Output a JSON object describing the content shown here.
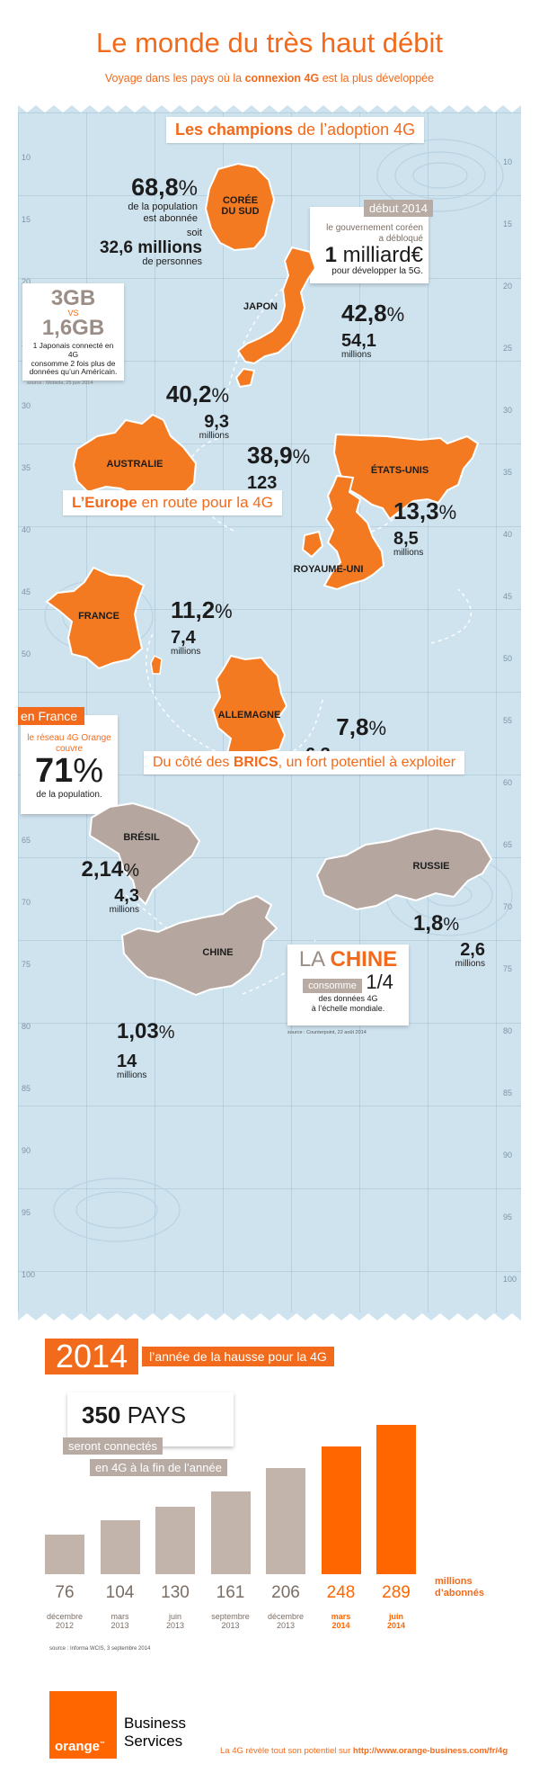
{
  "header": {
    "title": "Le monde du très haut débit",
    "subtitle_before": "Voyage dans les pays où la ",
    "subtitle_bold": "connexion 4G",
    "subtitle_after": " est la plus développée"
  },
  "champions": {
    "banner_bold": "Les champions",
    "banner_rest": " de l’adoption 4G",
    "coree": {
      "label_line1": "CORÉE",
      "label_line2": "DU SUD",
      "pct": "68,8",
      "pct_sign": "%",
      "pct_text_l1": "de la population",
      "pct_text_l2": "est abonnée",
      "soit": "soit",
      "millions_value": "32,6 millions",
      "millions_text": "de personnes"
    },
    "coree_card": {
      "tag": "début 2014",
      "text_l1": "le gouvernement coréen",
      "text_l2": "a débloqué",
      "amount": "1",
      "amount_word": "milliard",
      "currency": "€",
      "text_l3": "pour développer la 5G."
    },
    "japon": {
      "label": "JAPON",
      "pct": "42,8",
      "pct_sign": "%",
      "millions": "54,1",
      "millions_text": "millions"
    },
    "japon_card": {
      "a": "3GB",
      "vs": "VS",
      "b": "1,6GB",
      "text_l1": "1 Japonais connecté en 4G",
      "text_l2": "consomme 2 fois plus de",
      "text_l3": "données qu’un Américain.",
      "source": "source : Mobiola, 25 juin 2014"
    },
    "australie": {
      "label": "AUSTRALIE",
      "pct": "40,2",
      "pct_sign": "%",
      "millions": "9,3",
      "millions_text": "millions"
    },
    "usa": {
      "label": "ÉTATS-UNIS",
      "pct": "38,9",
      "pct_sign": "%",
      "millions": "123",
      "millions_text": "millions"
    }
  },
  "europe": {
    "banner_bold": "L’Europe",
    "banner_rest": " en route pour la 4G",
    "uk": {
      "label": "ROYAUME-UNI",
      "pct": "13,3",
      "pct_sign": "%",
      "millions": "8,5",
      "millions_text": "millions"
    },
    "france": {
      "label": "FRANCE",
      "pct": "11,2",
      "pct_sign": "%",
      "millions": "7,4",
      "millions_text": "millions"
    },
    "allemagne": {
      "label": "ALLEMAGNE",
      "pct": "7,8",
      "pct_sign": "%",
      "millions": "6,3",
      "millions_text": "millions"
    },
    "france_card": {
      "tag": "en France",
      "text_l1": "le réseau 4G Orange",
      "text_l2": "couvre",
      "value": "71",
      "value_sign": "%",
      "text_l3": "de la population."
    }
  },
  "brics": {
    "banner_before": "Du côté des ",
    "banner_bold": "BRICS",
    "banner_after": ", un fort potentiel à exploiter",
    "bresil": {
      "label": "BRÉSIL",
      "pct": "2,14",
      "pct_sign": "%",
      "millions": "4,3",
      "millions_text": "millions"
    },
    "russie": {
      "label": "RUSSIE",
      "pct": "1,8",
      "pct_sign": "%",
      "millions": "2,6",
      "millions_text": "millions"
    },
    "chine": {
      "label": "CHINE",
      "pct": "1,03",
      "pct_sign": "%",
      "millions": "14",
      "millions_text": "millions"
    },
    "chine_card": {
      "title_a": "LA ",
      "title_b": "CHINE",
      "tag": "consomme",
      "fraction": "1/4",
      "text_l1": "des données 4G",
      "text_l2": "à l’échelle mondiale.",
      "source": "source : Counterpoint, 22 août 2014"
    }
  },
  "axis_numbers": {
    "left": [
      "10",
      "15",
      "20",
      "25",
      "30",
      "35",
      "40",
      "45",
      "50",
      "55",
      "60",
      "65",
      "70",
      "75",
      "80",
      "85",
      "90",
      "95",
      "100"
    ],
    "right": [
      "10",
      "15",
      "20",
      "25",
      "30",
      "35",
      "40",
      "45",
      "50",
      "55",
      "60",
      "65",
      "70",
      "75",
      "80",
      "85",
      "90",
      "95",
      "100"
    ]
  },
  "year_section": {
    "year": "2014",
    "banner_text": "l’année de la hausse pour la 4G",
    "pays_value": "350",
    "pays_word": "PAYS",
    "tag_l1": "seront connectés",
    "tag_l2": "en 4G à la fin de l’année",
    "unit_l1": "millions",
    "unit_l2": "d’abonnés",
    "source": "source : Informa WCIS, 3 septembre 2014"
  },
  "chart_data": {
    "type": "bar",
    "categories": [
      "décembre 2012",
      "mars 2013",
      "juin 2013",
      "septembre 2013",
      "décembre 2013",
      "mars 2014",
      "juin 2014"
    ],
    "category_lines": [
      [
        "décembre",
        "2012"
      ],
      [
        "mars",
        "2013"
      ],
      [
        "juin",
        "2013"
      ],
      [
        "septembre",
        "2013"
      ],
      [
        "décembre",
        "2013"
      ],
      [
        "mars",
        "2014"
      ],
      [
        "juin",
        "2014"
      ]
    ],
    "values": [
      76,
      104,
      130,
      161,
      206,
      248,
      289
    ],
    "ylabel": "millions d’abonnés",
    "highlight_from_index": 5,
    "colors": {
      "normal": "#c2b4ab",
      "highlight": "#ff6600"
    },
    "ylim": [
      0,
      289
    ]
  },
  "footer": {
    "logo_text": "orange",
    "tm": "™",
    "brand_l1": "Business",
    "brand_l2": "Services",
    "tagline": "La 4G révèle tout son potentiel sur ",
    "url": "http://www.orange-business.com/fr/4g"
  },
  "colors": {
    "orange": "#f26a1b",
    "map_bg": "#cfe3ef",
    "grey": "#b8aba3"
  }
}
